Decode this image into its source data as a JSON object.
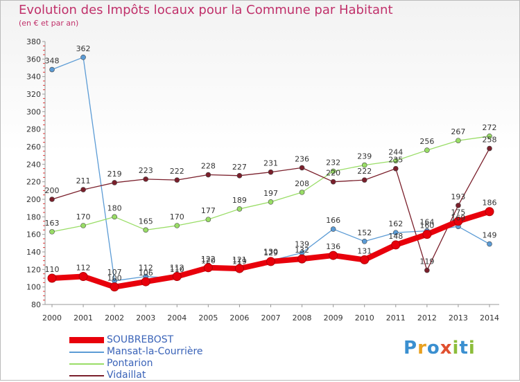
{
  "title": "Evolution des Impôts locaux pour la Commune par Habitant",
  "subtitle": "(en € et par an)",
  "logo": "Proxiti",
  "chart_data": {
    "type": "line",
    "title": "Evolution des Impôts locaux pour la Commune par Habitant",
    "subtitle": "(en € et par an)",
    "xlabel": "",
    "ylabel": "",
    "x": [
      "2000",
      "2001",
      "2002",
      "2003",
      "2004",
      "2005",
      "2006",
      "2007",
      "2008",
      "2009",
      "2010",
      "2011",
      "2012",
      "2013",
      "2014"
    ],
    "ylim": [
      80,
      380
    ],
    "yticks": [
      80,
      100,
      120,
      140,
      160,
      180,
      200,
      220,
      240,
      260,
      280,
      300,
      320,
      340,
      360,
      380
    ],
    "grid": false,
    "legend_position": "bottom-left",
    "series": [
      {
        "name": "SOUBREBOST",
        "color": "#e8000b",
        "values": [
          110,
          112,
          100,
          106,
          112,
          122,
          121,
          129,
          132,
          136,
          131,
          148,
          160,
          175,
          186
        ],
        "labels": [
          "110",
          "112",
          "100",
          "106",
          "112",
          "122",
          "121",
          "129",
          "132",
          "136",
          "131",
          "148",
          "160",
          "175",
          "186"
        ]
      },
      {
        "name": "Mansat-la-Courrière",
        "color": "#5b9bd5",
        "values": [
          348,
          362,
          107,
          112,
          110,
          120,
          119,
          130,
          139,
          166,
          152,
          162,
          164,
          169,
          149
        ],
        "labels": [
          "348",
          "362",
          "107",
          "112",
          "110",
          "120",
          "119",
          "130",
          "139",
          "166",
          "152",
          "162",
          "164",
          "169",
          "149"
        ]
      },
      {
        "name": "Pontarion",
        "color": "#99dd66",
        "values": [
          163,
          170,
          180,
          165,
          170,
          177,
          189,
          197,
          208,
          232,
          239,
          244,
          256,
          267,
          272
        ],
        "labels": [
          "163",
          "170",
          "180",
          "165",
          "170",
          "177",
          "189",
          "197",
          "208",
          "232",
          "239",
          "244",
          "256",
          "267",
          "272"
        ]
      },
      {
        "name": "Vidaillat",
        "color": "#7a1f2b",
        "values": [
          200,
          211,
          219,
          223,
          222,
          228,
          227,
          231,
          236,
          220,
          222,
          235,
          119,
          193,
          258
        ],
        "labels": [
          "200",
          "211",
          "219",
          "223",
          "222",
          "228",
          "227",
          "231",
          "236",
          "220",
          "222",
          "235",
          "119",
          "193",
          "258"
        ]
      }
    ]
  }
}
